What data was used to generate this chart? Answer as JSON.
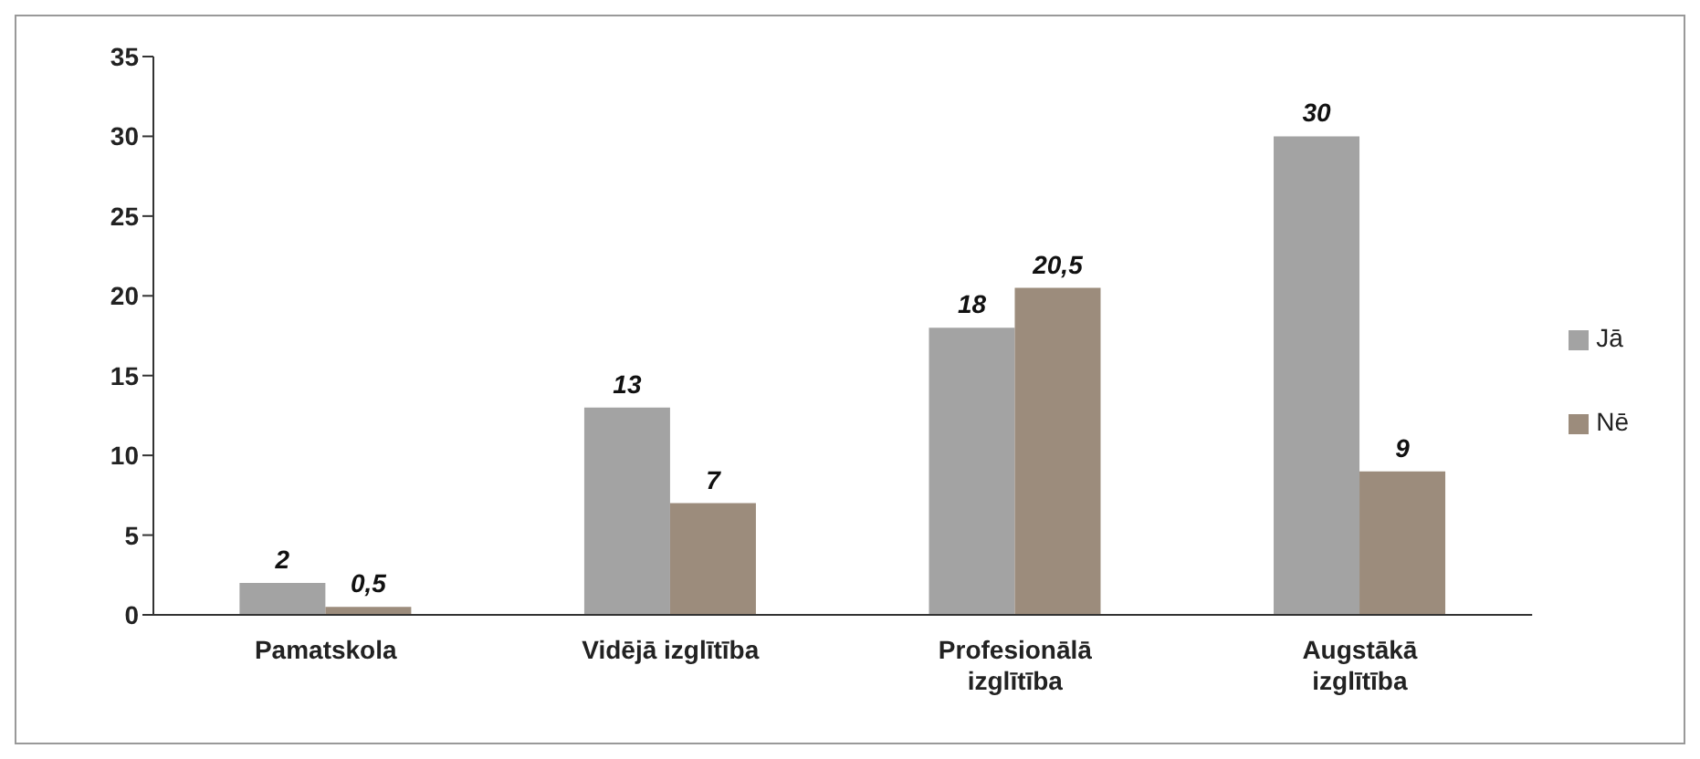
{
  "chart_data": {
    "type": "bar",
    "categories": [
      "Pamatskola",
      "Vidējā izglītība",
      "Profesionālā izglītība",
      "Augstākā izglītība"
    ],
    "series": [
      {
        "name": "Jā",
        "color": "#a3a3a3",
        "values": [
          2,
          13,
          18,
          30
        ],
        "value_labels": [
          "2",
          "13",
          "18",
          "30"
        ]
      },
      {
        "name": "Nē",
        "color": "#9c8c7c",
        "values": [
          0.5,
          7,
          20.5,
          9
        ],
        "value_labels": [
          "0,5",
          "7",
          "20,5",
          "9"
        ]
      }
    ],
    "ylim": [
      0,
      35
    ],
    "yticks": [
      0,
      5,
      10,
      15,
      20,
      25,
      30,
      35
    ],
    "grid": false,
    "legend": "right"
  }
}
